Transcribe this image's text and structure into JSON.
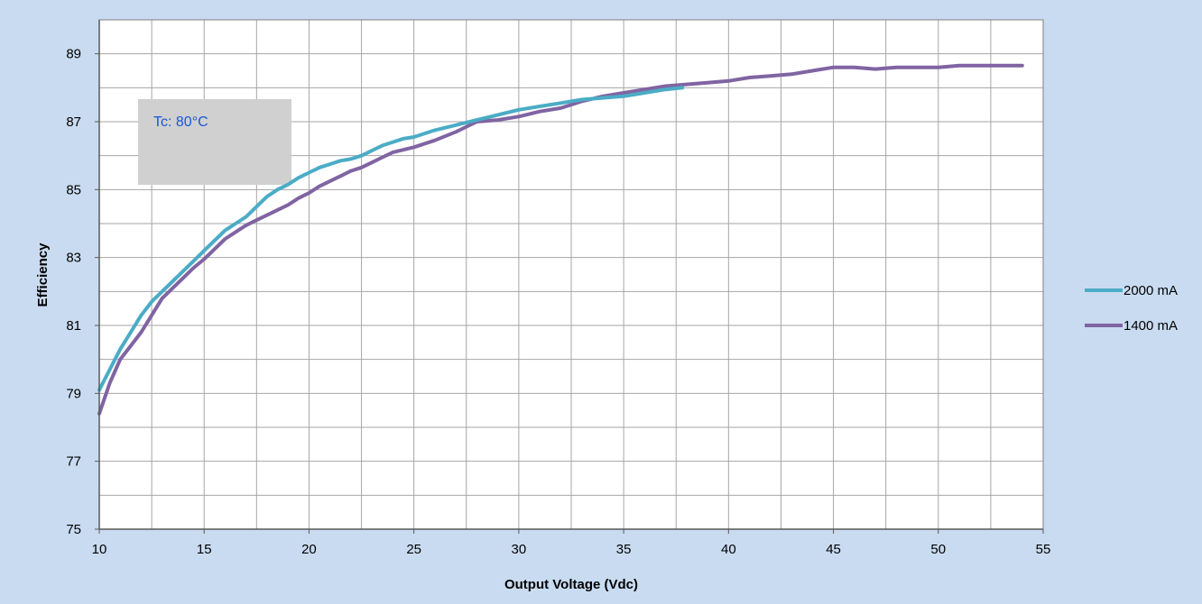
{
  "chart_data": {
    "type": "line",
    "title": "",
    "xlabel": "Output Voltage (Vdc)",
    "ylabel": "Efficiency",
    "xlim": [
      10,
      55
    ],
    "ylim": [
      75,
      90
    ],
    "x_ticks": [
      10,
      15,
      20,
      25,
      30,
      35,
      40,
      45,
      50,
      55
    ],
    "y_ticks": [
      75,
      77,
      79,
      81,
      83,
      85,
      87,
      89
    ],
    "grid": true,
    "legend_position": "right",
    "annotation": {
      "text": "Tc: 80°C",
      "text_color": "#1a56d6",
      "box_color": "#d0d0d0"
    },
    "series": [
      {
        "name": "2000 mA",
        "color": "#4bacc6",
        "x": [
          10,
          10.5,
          11,
          11.5,
          12,
          12.5,
          13,
          13.5,
          14,
          14.5,
          15,
          15.5,
          16,
          16.5,
          17,
          17.5,
          18,
          18.5,
          19,
          19.5,
          20,
          20.5,
          21,
          21.5,
          22,
          22.5,
          23,
          23.5,
          24,
          24.5,
          25,
          26,
          27,
          28,
          29,
          30,
          31,
          32,
          33,
          34,
          35,
          36,
          37,
          37.8
        ],
        "y": [
          79.1,
          79.7,
          80.3,
          80.8,
          81.3,
          81.7,
          82.0,
          82.3,
          82.6,
          82.9,
          83.2,
          83.5,
          83.8,
          84.0,
          84.2,
          84.5,
          84.8,
          85.0,
          85.15,
          85.35,
          85.5,
          85.65,
          85.75,
          85.85,
          85.9,
          86.0,
          86.15,
          86.3,
          86.4,
          86.5,
          86.55,
          86.75,
          86.9,
          87.05,
          87.2,
          87.35,
          87.45,
          87.55,
          87.65,
          87.7,
          87.75,
          87.85,
          87.95,
          88.0
        ]
      },
      {
        "name": "1400 mA",
        "color": "#8064a2",
        "x": [
          10,
          10.5,
          11,
          11.5,
          12,
          12.5,
          13,
          13.5,
          14,
          14.5,
          15,
          15.5,
          16,
          16.5,
          17,
          17.5,
          18,
          18.5,
          19,
          19.5,
          20,
          20.5,
          21,
          21.5,
          22,
          22.5,
          23,
          23.5,
          24,
          25,
          26,
          27,
          28,
          29,
          30,
          31,
          32,
          33,
          34,
          35,
          36,
          37,
          38,
          39,
          40,
          41,
          42,
          43,
          44,
          45,
          46,
          47,
          48,
          49,
          50,
          51,
          52,
          53,
          54
        ],
        "y": [
          78.4,
          79.3,
          80.0,
          80.4,
          80.8,
          81.3,
          81.8,
          82.1,
          82.4,
          82.7,
          82.95,
          83.25,
          83.55,
          83.75,
          83.95,
          84.1,
          84.25,
          84.4,
          84.55,
          84.75,
          84.9,
          85.1,
          85.25,
          85.4,
          85.55,
          85.65,
          85.8,
          85.95,
          86.1,
          86.25,
          86.45,
          86.7,
          87.0,
          87.05,
          87.15,
          87.3,
          87.4,
          87.6,
          87.75,
          87.85,
          87.95,
          88.05,
          88.1,
          88.15,
          88.2,
          88.3,
          88.35,
          88.4,
          88.5,
          88.6,
          88.6,
          88.55,
          88.6,
          88.6,
          88.6,
          88.65,
          88.65,
          88.65,
          88.65
        ]
      }
    ]
  }
}
